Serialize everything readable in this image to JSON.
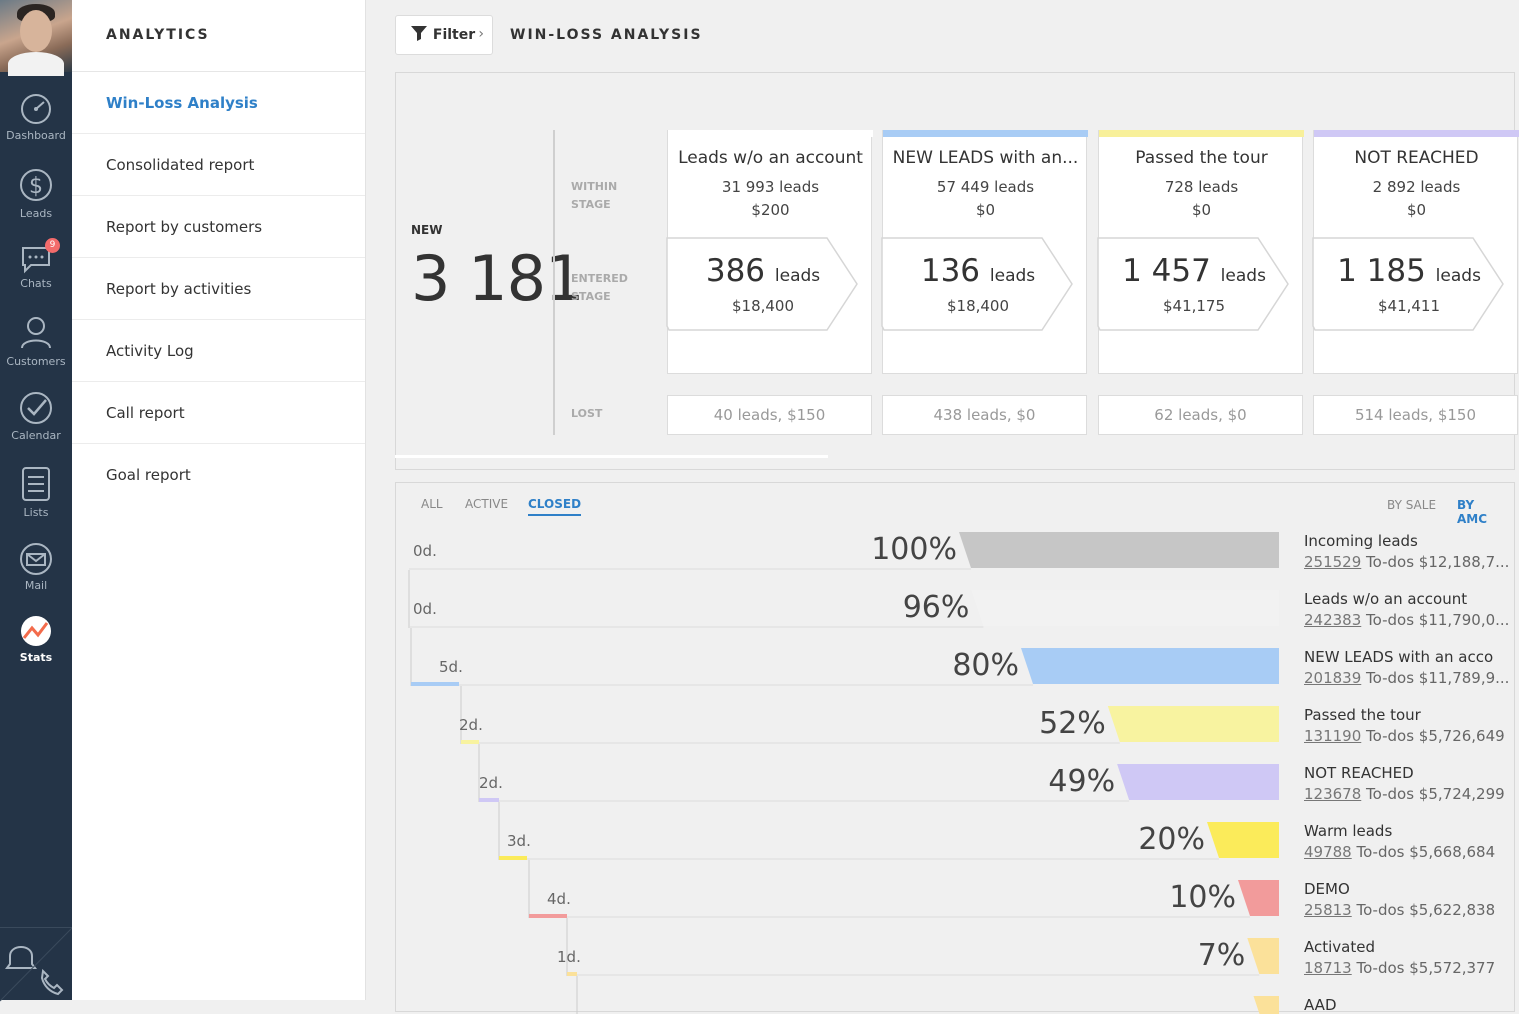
{
  "nav": {
    "items": [
      {
        "label": "Dashboard",
        "icon": "dashboard-icon"
      },
      {
        "label": "Leads",
        "icon": "dollar-icon"
      },
      {
        "label": "Chats",
        "icon": "chat-icon",
        "badge": "9"
      },
      {
        "label": "Customers",
        "icon": "customers-icon"
      },
      {
        "label": "Calendar",
        "icon": "check-icon"
      },
      {
        "label": "Lists",
        "icon": "list-icon"
      },
      {
        "label": "Mail",
        "icon": "mail-icon"
      },
      {
        "label": "Stats",
        "icon": "stats-icon"
      }
    ]
  },
  "submenu": {
    "title": "ANALYTICS",
    "items": [
      "Win-Loss Analysis",
      "Consolidated report",
      "Report by customers",
      "Report by activities",
      "Activity Log",
      "Call report",
      "Goal report"
    ]
  },
  "header": {
    "filter_label": "Filter",
    "title": "WIN-LOSS ANALYSIS"
  },
  "summary": {
    "new_label": "NEW",
    "new_value": "3 181",
    "row_within": "WITHIN STAGE",
    "row_entered": "ENTERED STAGE",
    "row_lost": "LOST"
  },
  "stages": [
    {
      "name": "Leads w/o an account",
      "leads": "31 993 leads",
      "amount": "$200",
      "entered_num": "386",
      "entered_unit": "leads",
      "entered_amount": "$18,400",
      "lost": "40 leads, $150",
      "color": "#ffffff"
    },
    {
      "name": "NEW LEADS with an...",
      "leads": "57 449 leads",
      "amount": "$0",
      "entered_num": "136",
      "entered_unit": "leads",
      "entered_amount": "$18,400",
      "lost": "438 leads, $0",
      "color": "#a8ccf5"
    },
    {
      "name": "Passed the tour",
      "leads": "728 leads",
      "amount": "$0",
      "entered_num": "1 457",
      "entered_unit": "leads",
      "entered_amount": "$41,175",
      "lost": "62 leads, $0",
      "color": "#f8f09a"
    },
    {
      "name": "NOT REACHED",
      "leads": "2 892 leads",
      "amount": "$0",
      "entered_num": "1 185",
      "entered_unit": "leads",
      "entered_amount": "$41,411",
      "lost": "514 leads, $150",
      "color": "#cfc8f5"
    }
  ],
  "tabs": [
    "ALL",
    "ACTIVE",
    "CLOSED"
  ],
  "active_tab": "CLOSED",
  "sort": {
    "by_sale": "BY SALE",
    "by_amount": "BY AMC"
  },
  "funnel": [
    {
      "days": "0d.",
      "pct": "100%",
      "value": 100,
      "color": "#c6c6c6",
      "label": "Incoming leads",
      "count": "251529",
      "todos": "To-dos $12,188,7..."
    },
    {
      "days": "0d.",
      "pct": "96%",
      "value": 96,
      "color": "#f2f2f2",
      "label": "Leads w/o an account",
      "count": "242383",
      "todos": "To-dos $11,790,0..."
    },
    {
      "days": "5d.",
      "pct": "80%",
      "value": 80,
      "color": "#a8ccf5",
      "label": "NEW LEADS with an acco",
      "count": "201839",
      "todos": "To-dos $11,789,9..."
    },
    {
      "days": "2d.",
      "pct": "52%",
      "value": 52,
      "color": "#f8f3a0",
      "label": "Passed the tour",
      "count": "131190",
      "todos": "To-dos $5,726,649"
    },
    {
      "days": "2d.",
      "pct": "49%",
      "value": 49,
      "color": "#cfc8f5",
      "label": "NOT REACHED",
      "count": "123678",
      "todos": "To-dos $5,724,299"
    },
    {
      "days": "3d.",
      "pct": "20%",
      "value": 20,
      "color": "#fbeb5a",
      "label": "Warm leads",
      "count": "49788",
      "todos": "To-dos $5,668,684"
    },
    {
      "days": "4d.",
      "pct": "10%",
      "value": 10,
      "color": "#f29b9b",
      "label": "DEMO",
      "count": "25813",
      "todos": "To-dos $5,622,838"
    },
    {
      "days": "1d.",
      "pct": "7%",
      "value": 7,
      "color": "#fbe19a",
      "label": "Activated",
      "count": "18713",
      "todos": "To-dos $5,572,377"
    },
    {
      "days": "",
      "pct": "",
      "value": 5,
      "color": "#fbe19a",
      "label": "AAD",
      "count": "",
      "todos": ""
    }
  ],
  "colors": {
    "accent": "#2f80c8",
    "nav_bg": "#243447",
    "badge": "#f36b6b",
    "stats_icon": "#f36b4b"
  }
}
